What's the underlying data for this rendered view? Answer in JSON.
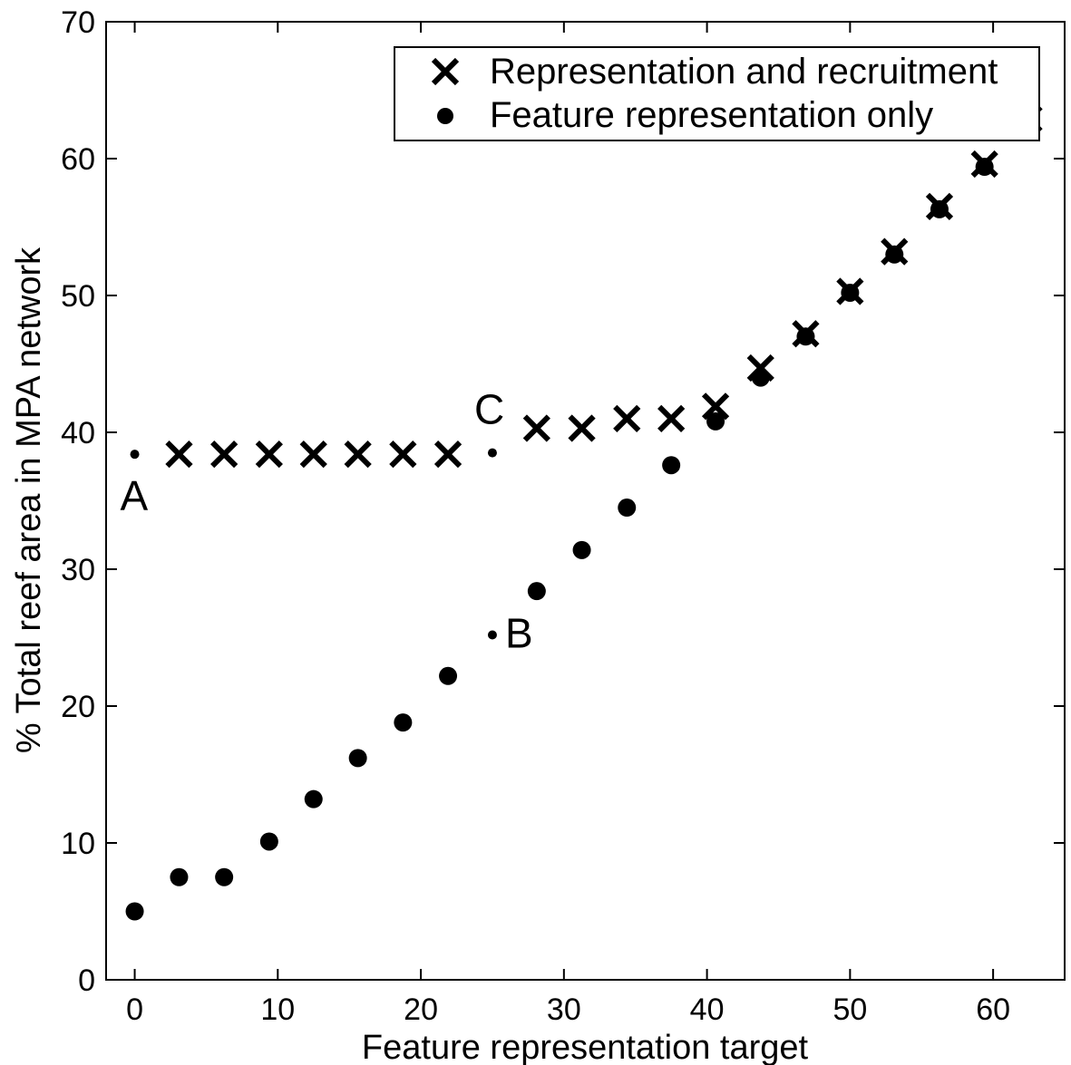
{
  "chart_data": {
    "type": "scatter",
    "xlabel": "Feature representation target",
    "ylabel": "% Total reef area in MPA network",
    "xlim": [
      -2,
      65
    ],
    "ylim": [
      0,
      70
    ],
    "xticks": [
      0,
      10,
      20,
      30,
      40,
      50,
      60
    ],
    "yticks": [
      0,
      10,
      20,
      30,
      40,
      50,
      60,
      70
    ],
    "grid": false,
    "legend_position": "top-right",
    "series": [
      {
        "name": "Representation and recruitment",
        "marker": "x",
        "color": "#000000",
        "x": [
          3.1,
          6.25,
          9.4,
          12.5,
          15.6,
          18.75,
          21.9,
          28.1,
          31.25,
          34.4,
          37.5,
          40.6,
          43.75,
          46.9,
          50.0,
          53.1,
          56.25,
          59.4,
          62.5
        ],
        "y": [
          38.4,
          38.4,
          38.4,
          38.4,
          38.4,
          38.4,
          38.4,
          40.3,
          40.3,
          41.0,
          41.0,
          41.9,
          44.7,
          47.2,
          50.3,
          53.2,
          56.5,
          59.6,
          62.9
        ]
      },
      {
        "name": "Feature representation only",
        "marker": "circle",
        "color": "#000000",
        "x": [
          0,
          3.1,
          6.25,
          9.4,
          12.5,
          15.6,
          18.75,
          21.9,
          28.1,
          31.25,
          34.4,
          37.5,
          40.6,
          43.75,
          46.9,
          50.0,
          53.1,
          56.25,
          59.4,
          62.5
        ],
        "y": [
          5.0,
          7.5,
          7.5,
          10.1,
          13.2,
          16.2,
          18.8,
          22.2,
          28.4,
          31.4,
          34.5,
          37.6,
          40.8,
          44.0,
          47.0,
          50.2,
          53.0,
          56.3,
          59.4,
          62.3
        ]
      }
    ],
    "annotations": [
      {
        "label": "A",
        "x": 0,
        "y": 38.4
      },
      {
        "label": "B",
        "x": 25,
        "y": 25.2
      },
      {
        "label": "C",
        "x": 25,
        "y": 38.5
      }
    ]
  }
}
